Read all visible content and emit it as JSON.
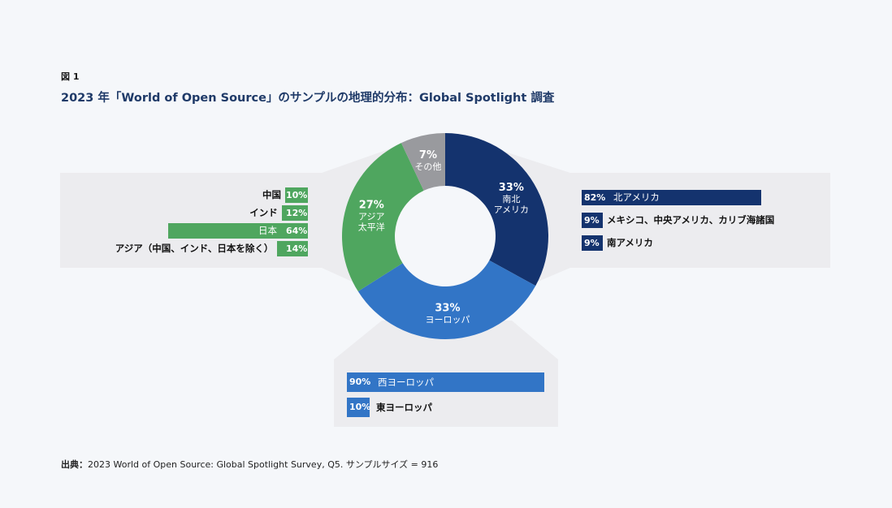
{
  "figure_label": "図 1",
  "title": "2023 年「World of Open Source」のサンプルの地理的分布：Global Spotlight 調査",
  "source_prefix": "出典：",
  "source_text": "2023 World of Open Source: Global Spotlight Survey, Q5. サンプルサイズ = 916",
  "colors": {
    "north_america": "#14336e",
    "europe": "#3275c6",
    "asia_pacific": "#4fa65f",
    "other": "#999a9e",
    "panel": "#ececef"
  },
  "chart_data": {
    "type": "pie",
    "style": "donut",
    "slices": [
      {
        "key": "north_america",
        "pct": 33,
        "value_label": "33%",
        "label_lines": [
          "南北",
          "アメリカ"
        ]
      },
      {
        "key": "europe",
        "pct": 33,
        "value_label": "33%",
        "label_lines": [
          "ヨーロッパ"
        ]
      },
      {
        "key": "asia_pacific",
        "pct": 27,
        "value_label": "27%",
        "label_lines": [
          "アジア",
          "太平洋"
        ]
      },
      {
        "key": "other",
        "pct": 7,
        "value_label": "7%",
        "label_lines": [
          "その他"
        ]
      }
    ],
    "breakdowns": {
      "asia_pacific": [
        {
          "name": "中国",
          "pct": 10,
          "label": "10%"
        },
        {
          "name": "インド",
          "pct": 12,
          "label": "12%"
        },
        {
          "name": "日本",
          "pct": 64,
          "label": "64%"
        },
        {
          "name": "アジア（中国、インド、日本を除く）",
          "pct": 14,
          "label": "14%"
        }
      ],
      "north_america": [
        {
          "name": "北アメリカ",
          "pct": 82,
          "label": "82%"
        },
        {
          "name": "メキシコ、中央アメリカ、カリブ海諸国",
          "pct": 9,
          "label": "9%"
        },
        {
          "name": "南アメリカ",
          "pct": 9,
          "label": "9%"
        }
      ],
      "europe": [
        {
          "name": "西ヨーロッパ",
          "pct": 90,
          "label": "90%"
        },
        {
          "name": "東ヨーロッパ",
          "pct": 10,
          "label": "10%"
        }
      ]
    }
  }
}
